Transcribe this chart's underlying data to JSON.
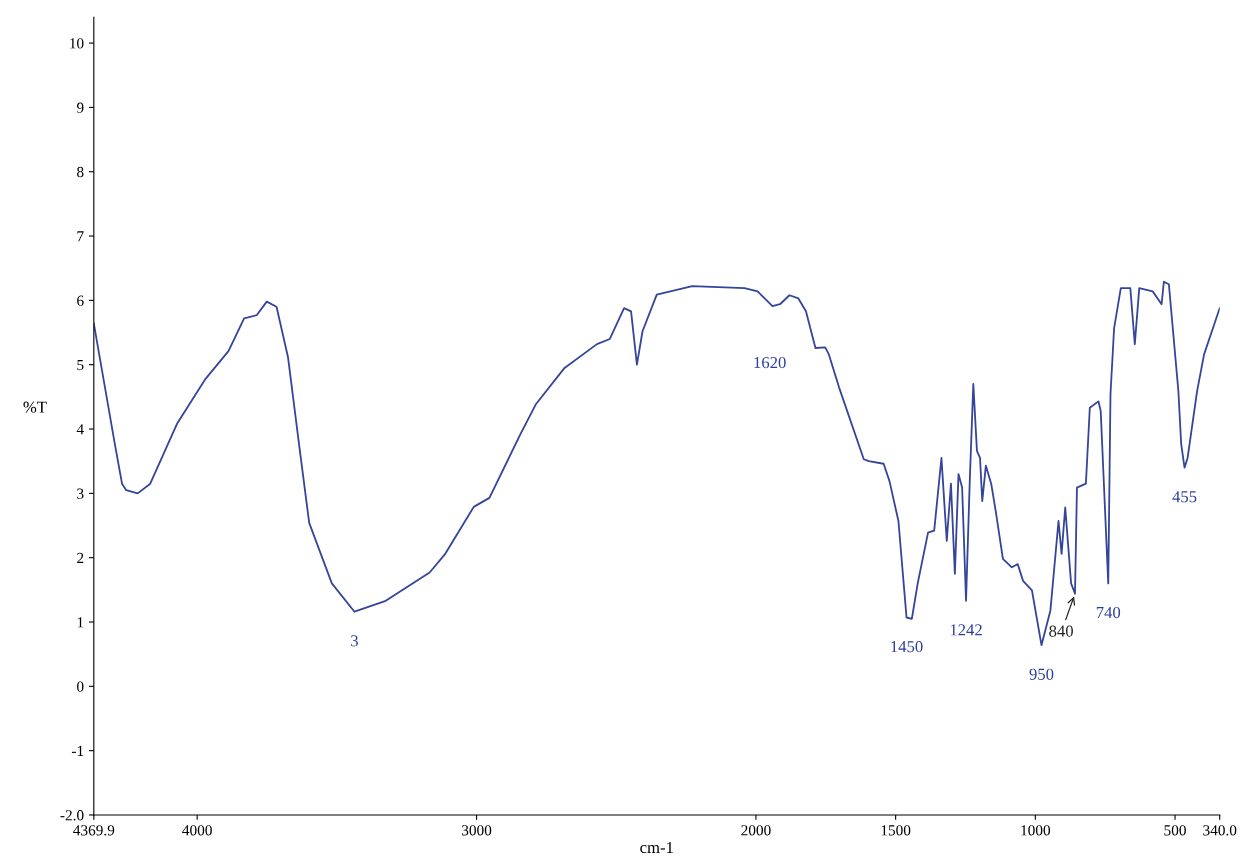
{
  "chart_data": {
    "type": "line",
    "xlabel": "cm-1",
    "ylabel": "%T",
    "x": [
      4369.9,
      4294,
      4269,
      4254,
      4213,
      4168,
      4071,
      3970,
      3888,
      3832,
      3787,
      3751,
      3716,
      3675,
      3635,
      3599,
      3518,
      3437,
      3325,
      3168,
      3112,
      3010,
      2954,
      2843,
      2787,
      2685,
      2569,
      2523,
      2472,
      2447,
      2426,
      2406,
      2355,
      2228,
      2041,
      1994,
      1941,
      1914,
      1880,
      1848,
      1821,
      1787,
      1752,
      1739,
      1702,
      1614,
      1596,
      1543,
      1522,
      1490,
      1461,
      1442,
      1421,
      1384,
      1362,
      1336,
      1317,
      1302,
      1288,
      1275,
      1262,
      1248,
      1235,
      1222,
      1209,
      1198,
      1190,
      1177,
      1158,
      1142,
      1116,
      1084,
      1063,
      1044,
      1012,
      978,
      946,
      917,
      906,
      893,
      872,
      858,
      851,
      819,
      805,
      774,
      766,
      739,
      731,
      718,
      694,
      660,
      644,
      628,
      580,
      548,
      540,
      522,
      488,
      478,
      466,
      455,
      421,
      396,
      340.0
    ],
    "series": [
      {
        "color": "#34459a",
        "values": [
          5.64,
          3.75,
          3.15,
          3.05,
          3.0,
          3.15,
          4.09,
          4.78,
          5.21,
          5.72,
          5.77,
          5.98,
          5.9,
          5.12,
          3.75,
          2.54,
          1.6,
          1.16,
          1.33,
          1.77,
          2.06,
          2.79,
          2.93,
          3.92,
          4.39,
          4.95,
          5.32,
          5.4,
          5.88,
          5.83,
          5.0,
          5.52,
          6.09,
          6.22,
          6.19,
          6.14,
          5.91,
          5.94,
          6.08,
          6.03,
          5.83,
          5.26,
          5.27,
          5.16,
          4.64,
          3.53,
          3.5,
          3.46,
          3.19,
          2.57,
          1.07,
          1.05,
          1.6,
          2.39,
          2.42,
          3.55,
          2.26,
          3.15,
          1.75,
          3.3,
          3.09,
          1.33,
          3.15,
          4.7,
          3.66,
          3.55,
          2.88,
          3.43,
          3.15,
          2.73,
          1.98,
          1.85,
          1.9,
          1.64,
          1.49,
          0.64,
          1.18,
          2.57,
          2.06,
          2.78,
          1.6,
          1.44,
          3.09,
          3.15,
          4.33,
          4.43,
          4.28,
          1.6,
          4.54,
          5.57,
          6.19,
          6.19,
          5.32,
          6.19,
          6.14,
          5.94,
          6.29,
          6.25,
          4.59,
          3.77,
          3.4,
          3.55,
          4.59,
          5.16,
          5.88
        ]
      }
    ],
    "xlim": [
      4369.9,
      340.0
    ],
    "xticks": [
      4369.9,
      4000,
      3000,
      2000,
      1500,
      1000,
      500,
      {
        "value": 340.0,
        "label": "340.0"
      }
    ],
    "ylim": [
      -2,
      10.4
    ],
    "yticks": [
      {
        "value": -2,
        "label": "-2.0"
      },
      -1,
      0,
      1,
      2,
      3,
      4,
      5,
      6,
      7,
      8,
      9,
      10
    ],
    "annotations": [
      {
        "text": "3",
        "x": 3437,
        "y": 1.16
      },
      {
        "text": "1620",
        "x": 1752,
        "y": 5.27
      },
      {
        "text": "1450",
        "x": 1461,
        "y": 1.07
      },
      {
        "text": "1242",
        "x": 1248,
        "y": 1.33
      },
      {
        "text": "950",
        "x": 978,
        "y": 0.64
      },
      {
        "text": "840",
        "x": 858,
        "y": 1.44
      },
      {
        "text": "740",
        "x": 739,
        "y": 1.6
      },
      {
        "text": "455",
        "x": 466,
        "y": 3.4
      }
    ],
    "grid": false,
    "legend": false,
    "marker": "none",
    "line_style": "solid"
  }
}
